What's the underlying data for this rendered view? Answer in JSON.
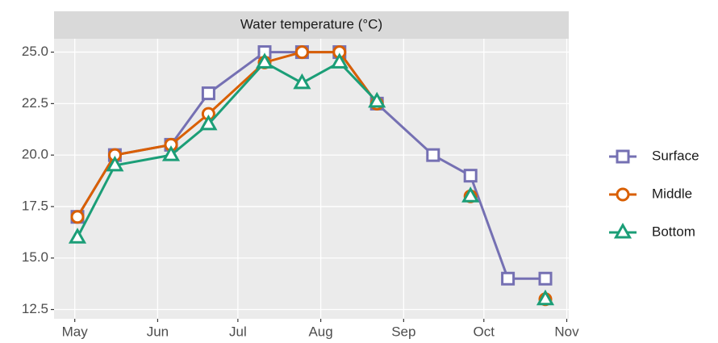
{
  "chart_data": {
    "type": "line",
    "title": "Water temperature (°C)",
    "x": [
      122,
      136,
      157,
      171,
      192,
      206,
      220,
      234,
      255,
      269,
      283,
      297
    ],
    "series": [
      {
        "name": "Surface",
        "color": "#7570b3",
        "marker": "square",
        "values": [
          17,
          20,
          20.5,
          23,
          25,
          25,
          25,
          22.5,
          20,
          19,
          14,
          14
        ]
      },
      {
        "name": "Middle",
        "color": "#d95f02",
        "marker": "circle",
        "values": [
          17,
          20,
          20.5,
          22,
          24.5,
          25,
          25,
          22.5,
          null,
          18,
          null,
          13
        ]
      },
      {
        "name": "Bottom",
        "color": "#1b9e77",
        "marker": "triangle",
        "values": [
          16,
          19.5,
          20,
          21.5,
          24.5,
          23.5,
          24.5,
          22.6,
          null,
          18,
          null,
          13
        ]
      }
    ],
    "xlim": [
      113.25,
      305.75
    ],
    "xticks": [
      {
        "value": 121,
        "label": "May"
      },
      {
        "value": 152,
        "label": "Jun"
      },
      {
        "value": 182,
        "label": "Jul"
      },
      {
        "value": 213,
        "label": "Aug"
      },
      {
        "value": 244,
        "label": "Sep"
      },
      {
        "value": 274,
        "label": "Oct"
      },
      {
        "value": 305,
        "label": "Nov"
      }
    ],
    "ylim": [
      12.05,
      25.65
    ],
    "yticks": [
      12.5,
      {
        "value": 15,
        "label": "15.0"
      },
      17.5,
      {
        "value": 20,
        "label": "20.0"
      },
      22.5,
      {
        "value": 25,
        "label": "25.0"
      }
    ],
    "grid": true,
    "legend": "right"
  }
}
